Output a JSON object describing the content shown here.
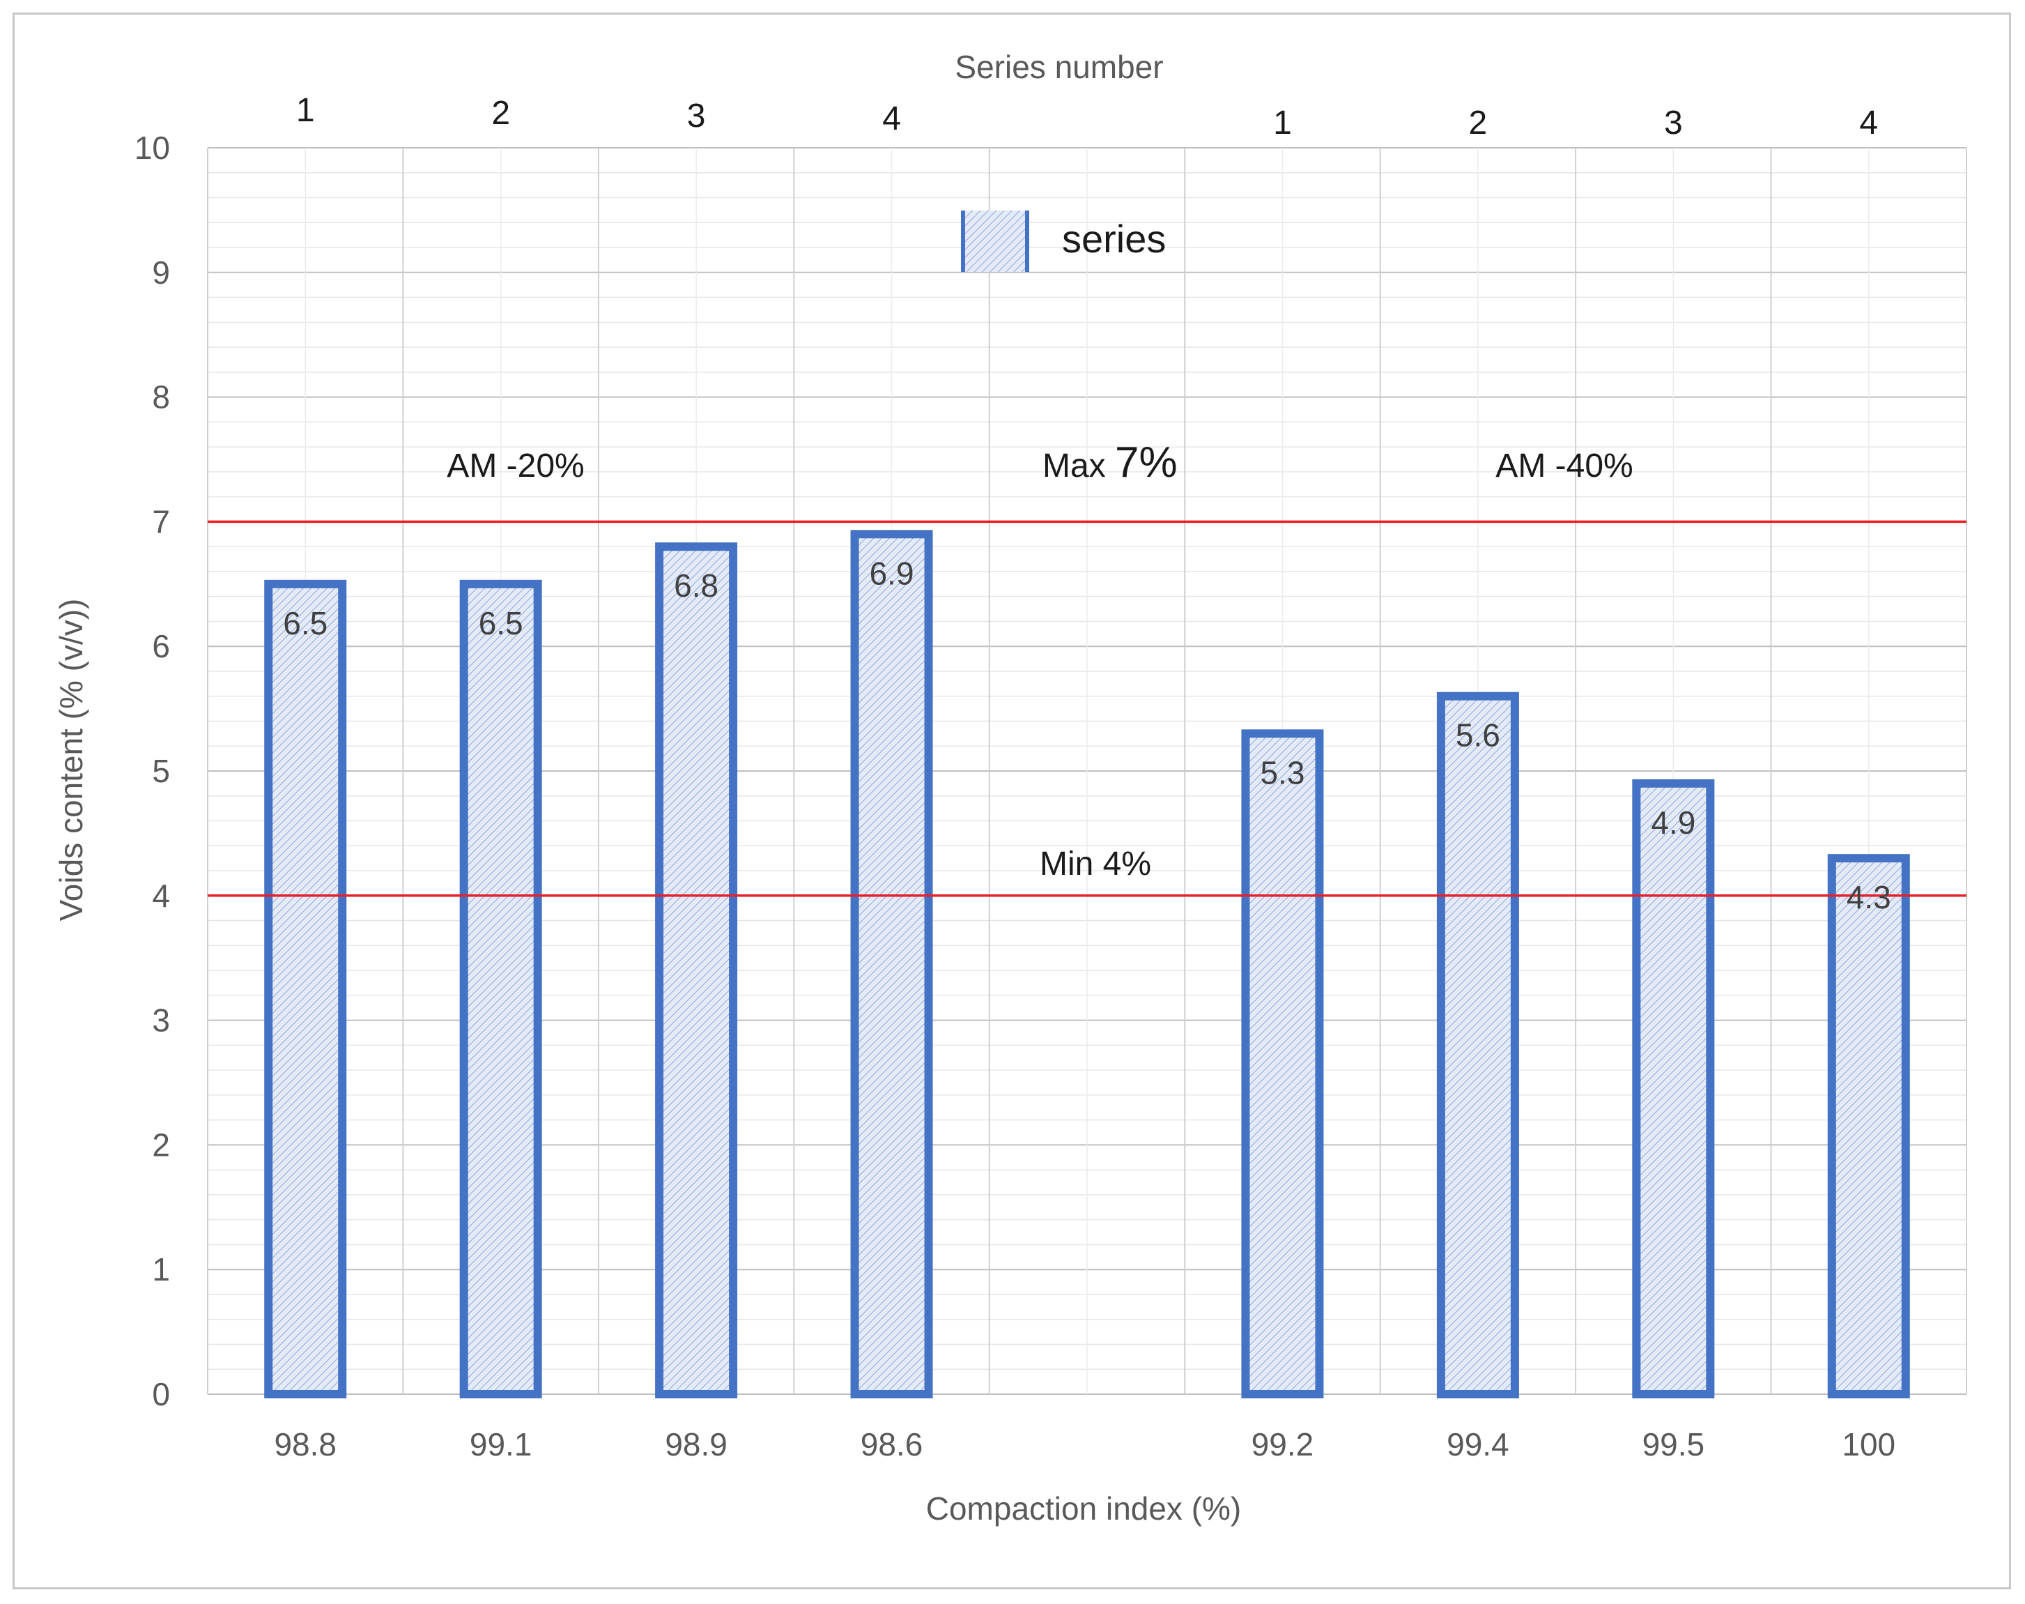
{
  "chart_data": {
    "type": "bar",
    "x_title": "Compaction index (%)",
    "y_title": "Voids content (% (v/v))",
    "top_axis_title": "Series number",
    "ylim": [
      0,
      10
    ],
    "y_ticks": [
      0,
      1,
      2,
      3,
      4,
      5,
      6,
      7,
      8,
      9,
      10
    ],
    "categories": [
      "98.8",
      "99.1",
      "98.9",
      "98.6",
      "",
      "99.2",
      "99.4",
      "99.5",
      "100"
    ],
    "series_numbers": [
      "1",
      "2",
      "3",
      "4",
      "",
      "1",
      "2",
      "3",
      "4"
    ],
    "series": [
      {
        "name": "series",
        "values": [
          6.5,
          6.5,
          6.8,
          6.9,
          null,
          5.3,
          5.6,
          4.9,
          4.3
        ]
      }
    ],
    "data_labels": [
      "6.5",
      "6.5",
      "6.8",
      "6.9",
      "",
      "5.3",
      "5.6",
      "4.9",
      "4.3"
    ],
    "reference_lines": [
      {
        "value": 7,
        "color": "#e8202a"
      },
      {
        "value": 4,
        "color": "#e8202a"
      }
    ],
    "annotations": {
      "group1": "AM -20%",
      "group2": "AM -40%",
      "max_prefix": "Max ",
      "max_value": "7%",
      "min": "Min 4%"
    },
    "legend_position": "top-center",
    "grid": true,
    "colors": {
      "bar_border": "#4472c4",
      "bar_fill": "#dae3f3",
      "ref_line": "#e8202a",
      "grid": "#d9d9d9"
    }
  }
}
